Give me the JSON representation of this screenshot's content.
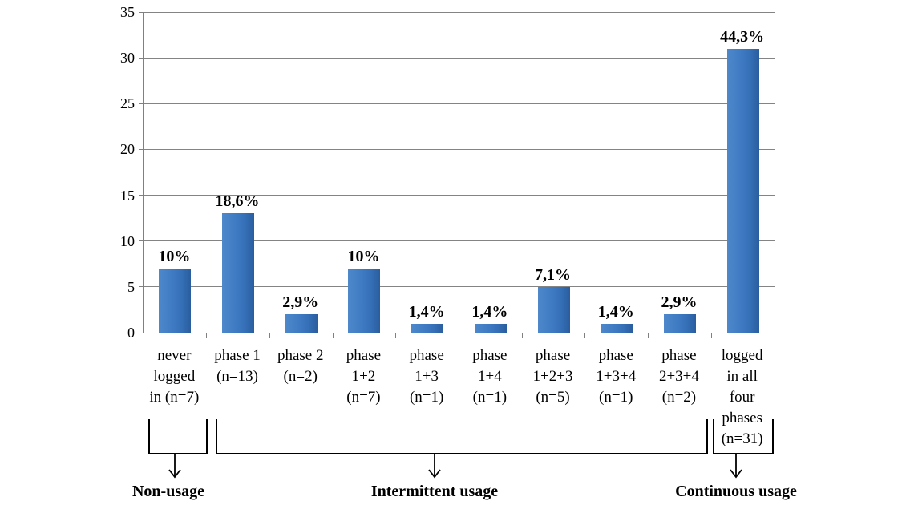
{
  "chart_data": {
    "type": "bar",
    "title": "",
    "xlabel": "",
    "ylabel": "",
    "ylim": [
      0,
      35
    ],
    "yticks": [
      0,
      5,
      10,
      15,
      20,
      25,
      30,
      35
    ],
    "grid": true,
    "legend": false,
    "categories": [
      [
        "never",
        "logged",
        "in (n=7)"
      ],
      [
        "phase 1",
        "(n=13)"
      ],
      [
        "phase 2",
        "(n=2)"
      ],
      [
        "phase",
        "1+2",
        "(n=7)"
      ],
      [
        "phase",
        "1+3",
        "(n=1)"
      ],
      [
        "phase",
        "1+4",
        "(n=1)"
      ],
      [
        "phase",
        "1+2+3",
        "(n=5)"
      ],
      [
        "phase",
        "1+3+4",
        "(n=1)"
      ],
      [
        "phase",
        "2+3+4",
        "(n=2)"
      ],
      [
        "logged",
        "in all",
        "four",
        "phases",
        "(n=31)"
      ]
    ],
    "values": [
      7,
      13,
      2,
      7,
      1,
      1,
      5,
      1,
      2,
      31
    ],
    "bar_labels": [
      "10%",
      "18,6%",
      "2,9%",
      "10%",
      "1,4%",
      "1,4%",
      "7,1%",
      "1,4%",
      "2,9%",
      "44,3%"
    ],
    "groups": [
      {
        "label": "Non-usage",
        "from": 0,
        "to": 0
      },
      {
        "label": "Intermittent usage",
        "from": 1,
        "to": 8
      },
      {
        "label": "Continuous usage",
        "from": 9,
        "to": 9
      }
    ],
    "colors": {
      "bar": "#3b76bf",
      "bar_gradient_left": "#4e88cb",
      "bar_gradient_right": "#2a5d9e",
      "gridline": "#848484",
      "axis": "#808080",
      "text": "#000000",
      "background": "#ffffff"
    }
  }
}
